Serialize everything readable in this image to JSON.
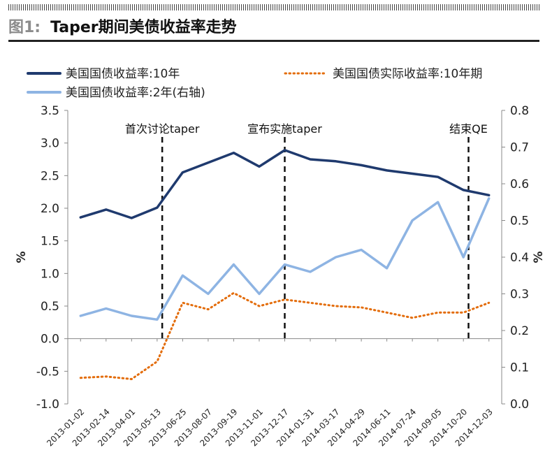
{
  "figure": {
    "label": "图1:",
    "title": "Taper期间美债收益率走势"
  },
  "chart_data": {
    "type": "line",
    "x": [
      "2013-01-02",
      "2013-02-14",
      "2013-04-01",
      "2013-05-13",
      "2013-06-25",
      "2013-08-07",
      "2013-09-19",
      "2013-11-01",
      "2013-12-17",
      "2014-01-31",
      "2014-03-17",
      "2014-04-29",
      "2014-06-11",
      "2014-07-24",
      "2014-09-05",
      "2014-10-20",
      "2014-12-03"
    ],
    "ylabel": "%",
    "y2label": "%",
    "ylim": [
      -1.0,
      3.5
    ],
    "yticks": [
      "3.5",
      "3.0",
      "2.5",
      "2.0",
      "1.5",
      "1.0",
      "0.5",
      "0.0",
      "-0.5",
      "-1.0"
    ],
    "y2lim": [
      0.0,
      0.8
    ],
    "y2ticks": [
      "0.8",
      "0.7",
      "0.6",
      "0.5",
      "0.4",
      "0.3",
      "0.2",
      "0.1",
      "0.0"
    ],
    "legend_position": "top",
    "series": [
      {
        "name": "美国国债收益率:10年",
        "axis": "left",
        "color": "#1f3a6e",
        "style": "solid",
        "values": [
          1.86,
          1.98,
          1.85,
          2.01,
          2.55,
          2.7,
          2.85,
          2.64,
          2.89,
          2.75,
          2.72,
          2.66,
          2.58,
          2.53,
          2.48,
          2.28,
          2.2
        ]
      },
      {
        "name": "美国国债实际收益率:10年期",
        "axis": "left",
        "color": "#e36c0a",
        "style": "dotted",
        "values": [
          -0.6,
          -0.58,
          -0.62,
          -0.35,
          0.55,
          0.45,
          0.7,
          0.5,
          0.6,
          0.55,
          0.5,
          0.48,
          0.4,
          0.32,
          0.4,
          0.4,
          0.55
        ]
      },
      {
        "name": "美国国债收益率:2年(右轴)",
        "axis": "right",
        "color": "#8eb4e3",
        "style": "solid",
        "values": [
          0.24,
          0.26,
          0.24,
          0.23,
          0.35,
          0.3,
          0.38,
          0.3,
          0.38,
          0.36,
          0.4,
          0.42,
          0.37,
          0.5,
          0.55,
          0.4,
          0.56
        ]
      }
    ],
    "annotations": [
      {
        "label": "首次讨论taper",
        "x": "2013-05-22"
      },
      {
        "label": "宣布实施taper",
        "x": "2013-12-18"
      },
      {
        "label": "结束QE",
        "x": "2014-10-29"
      }
    ]
  }
}
